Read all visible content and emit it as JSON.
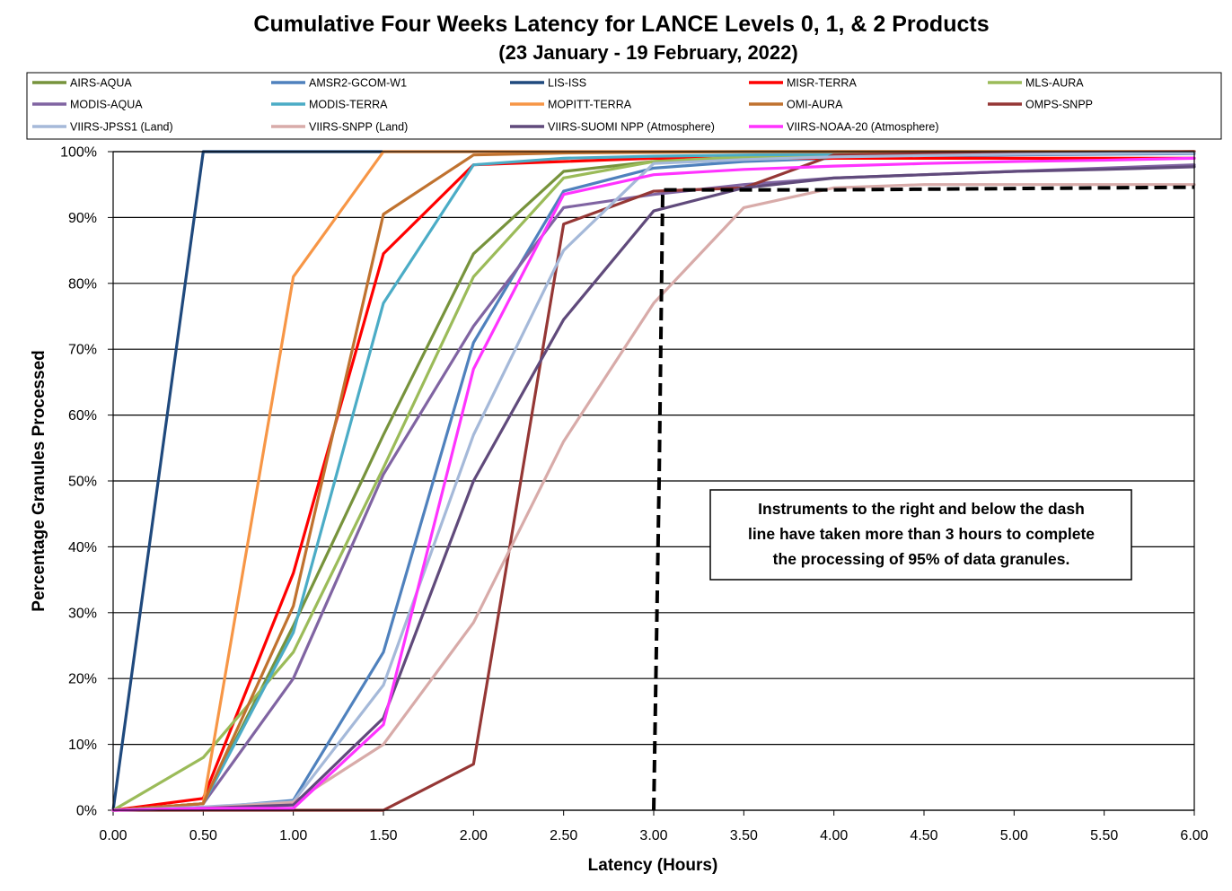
{
  "chart_data": {
    "type": "line",
    "title": "Cumulative Four Weeks Latency  for LANCE Levels 0, 1, & 2 Products",
    "subtitle": "(23  January   -  19  February,  2022)",
    "xlabel": "Latency (Hours)",
    "ylabel": "Percentage Granules Processed",
    "xlim": [
      0,
      6
    ],
    "ylim": [
      0,
      100
    ],
    "x_ticks": [
      "0.00",
      "0.50",
      "1.00",
      "1.50",
      "2.00",
      "2.50",
      "3.00",
      "3.50",
      "4.00",
      "4.50",
      "5.00",
      "5.50",
      "6.00"
    ],
    "y_ticks": [
      "0%",
      "10%",
      "20%",
      "30%",
      "40%",
      "50%",
      "60%",
      "70%",
      "80%",
      "90%",
      "100%"
    ],
    "grid": "horizontal",
    "legend_position": "top",
    "x": [
      0,
      0.5,
      1,
      1.5,
      2,
      2.5,
      3,
      3.5,
      4,
      4.5,
      5,
      5.5,
      6
    ],
    "series": [
      {
        "name": "AIRS-AQUA",
        "color": "#77933C",
        "values": [
          0,
          1,
          28,
          57,
          84.5,
          97,
          98.5,
          99.2,
          99.5,
          99.7,
          99.8,
          99.9,
          100
        ]
      },
      {
        "name": "AMSR2-GCOM-W1",
        "color": "#4F81BD",
        "values": [
          0,
          0.3,
          1.5,
          24,
          71,
          94,
          97.5,
          98.5,
          99,
          99.3,
          99.5,
          99.6,
          99.7
        ]
      },
      {
        "name": "LIS-ISS",
        "color": "#1F497D",
        "values": [
          0,
          100,
          100,
          100,
          100,
          100,
          100,
          100,
          100,
          100,
          100,
          100,
          100
        ]
      },
      {
        "name": "MISR-TERRA",
        "color": "#FF0000",
        "values": [
          0,
          1.8,
          36,
          84.5,
          98,
          98.5,
          99,
          99,
          99,
          99,
          99,
          99,
          99
        ]
      },
      {
        "name": "MLS-AURA",
        "color": "#9BBB59",
        "values": [
          0,
          8,
          24,
          52,
          81,
          96,
          98.5,
          99.2,
          99.5,
          99.7,
          99.8,
          99.9,
          100
        ]
      },
      {
        "name": "MODIS-AQUA",
        "color": "#8064A2",
        "values": [
          0,
          1,
          20,
          51,
          73.5,
          91.5,
          93.5,
          95,
          96,
          96.5,
          97,
          97.5,
          98
        ]
      },
      {
        "name": "MODIS-TERRA",
        "color": "#4BACC6",
        "values": [
          0,
          1,
          27,
          77,
          98,
          99,
          99.3,
          99.5,
          99.6,
          99.7,
          99.8,
          99.9,
          100
        ]
      },
      {
        "name": "MOPITT-TERRA",
        "color": "#F79646",
        "values": [
          0,
          1,
          81,
          100,
          100,
          100,
          100,
          100,
          100,
          100,
          100,
          100,
          100
        ]
      },
      {
        "name": "OMI-AURA",
        "color": "#C0722F",
        "values": [
          0,
          1,
          31,
          90.5,
          99.5,
          99.8,
          99.9,
          100,
          100,
          100,
          100,
          100,
          100
        ]
      },
      {
        "name": "OMPS-SNPP",
        "color": "#953735",
        "values": [
          0,
          0,
          0,
          0,
          7,
          89,
          94,
          94.5,
          99.5,
          99.7,
          99.8,
          99.9,
          100
        ]
      },
      {
        "name": "VIIRS-JPSS1 (Land)",
        "color": "#A5B9D9",
        "values": [
          0,
          0.5,
          1.3,
          19,
          57,
          85,
          98.2,
          98.8,
          99.2,
          99.4,
          99.6,
          99.7,
          99.8
        ]
      },
      {
        "name": "VIIRS-SNPP (Land)",
        "color": "#D8ABA9",
        "values": [
          0,
          0.3,
          1.2,
          10,
          28.5,
          56,
          77,
          91.5,
          94.5,
          95,
          95,
          95,
          95
        ]
      },
      {
        "name": "VIIRS-SUOMI NPP (Atmosphere)",
        "color": "#604A7B",
        "values": [
          0,
          0.3,
          0.8,
          14,
          50,
          74.5,
          91,
          94.5,
          96,
          96.5,
          97,
          97.3,
          97.7
        ]
      },
      {
        "name": "VIIRS-NOAA-20 (Atmosphere)",
        "color": "#FF33FF",
        "values": [
          0,
          0.3,
          0.3,
          13,
          67,
          93.5,
          96.5,
          97.3,
          97.8,
          98.2,
          98.5,
          98.7,
          99
        ]
      }
    ],
    "threshold_line": {
      "color": "#000000",
      "points": [
        [
          3.0,
          0
        ],
        [
          3.03,
          50
        ],
        [
          3.05,
          94.2
        ],
        [
          4.0,
          94.2
        ],
        [
          6.0,
          94.6
        ]
      ]
    },
    "annotation": {
      "lines": [
        "Instruments to the right and below the dash",
        "line have taken more than 3 hours to complete",
        "the processing of 95% of data granules."
      ]
    }
  }
}
